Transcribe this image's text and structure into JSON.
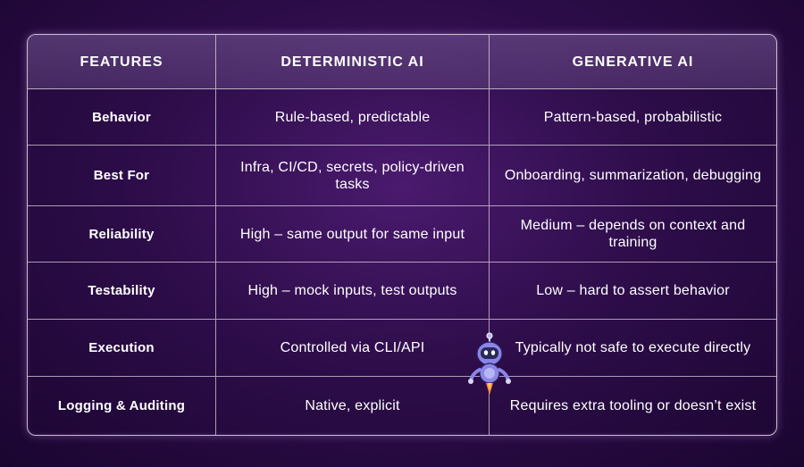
{
  "table": {
    "headers": [
      "FEATURES",
      "DETERMINISTIC AI",
      "GENERATIVE AI"
    ],
    "rows": [
      {
        "feature": "Behavior",
        "deterministic": "Rule-based, predictable",
        "generative": "Pattern-based, probabilistic"
      },
      {
        "feature": "Best For",
        "deterministic": "Infra, CI/CD, secrets, policy-driven tasks",
        "generative": "Onboarding, summarization, debugging"
      },
      {
        "feature": "Reliability",
        "deterministic": "High – same output for same input",
        "generative": "Medium – depends on context and training"
      },
      {
        "feature": "Testability",
        "deterministic": "High – mock inputs, test outputs",
        "generative": "Low – hard to assert behavior"
      },
      {
        "feature": "Execution",
        "deterministic": "Controlled via CLI/API",
        "generative": "Typically not safe to execute directly"
      },
      {
        "feature": "Logging & Auditing",
        "deterministic": "Native, explicit",
        "generative": "Requires extra tooling or doesn’t exist"
      }
    ]
  },
  "colors": {
    "background": "#2e0d4a",
    "header_fill": "#6e5290",
    "border": "#ffffff",
    "robot_body": "#8a86e8"
  },
  "icons": {
    "mascot": "robot-mascot-icon"
  }
}
